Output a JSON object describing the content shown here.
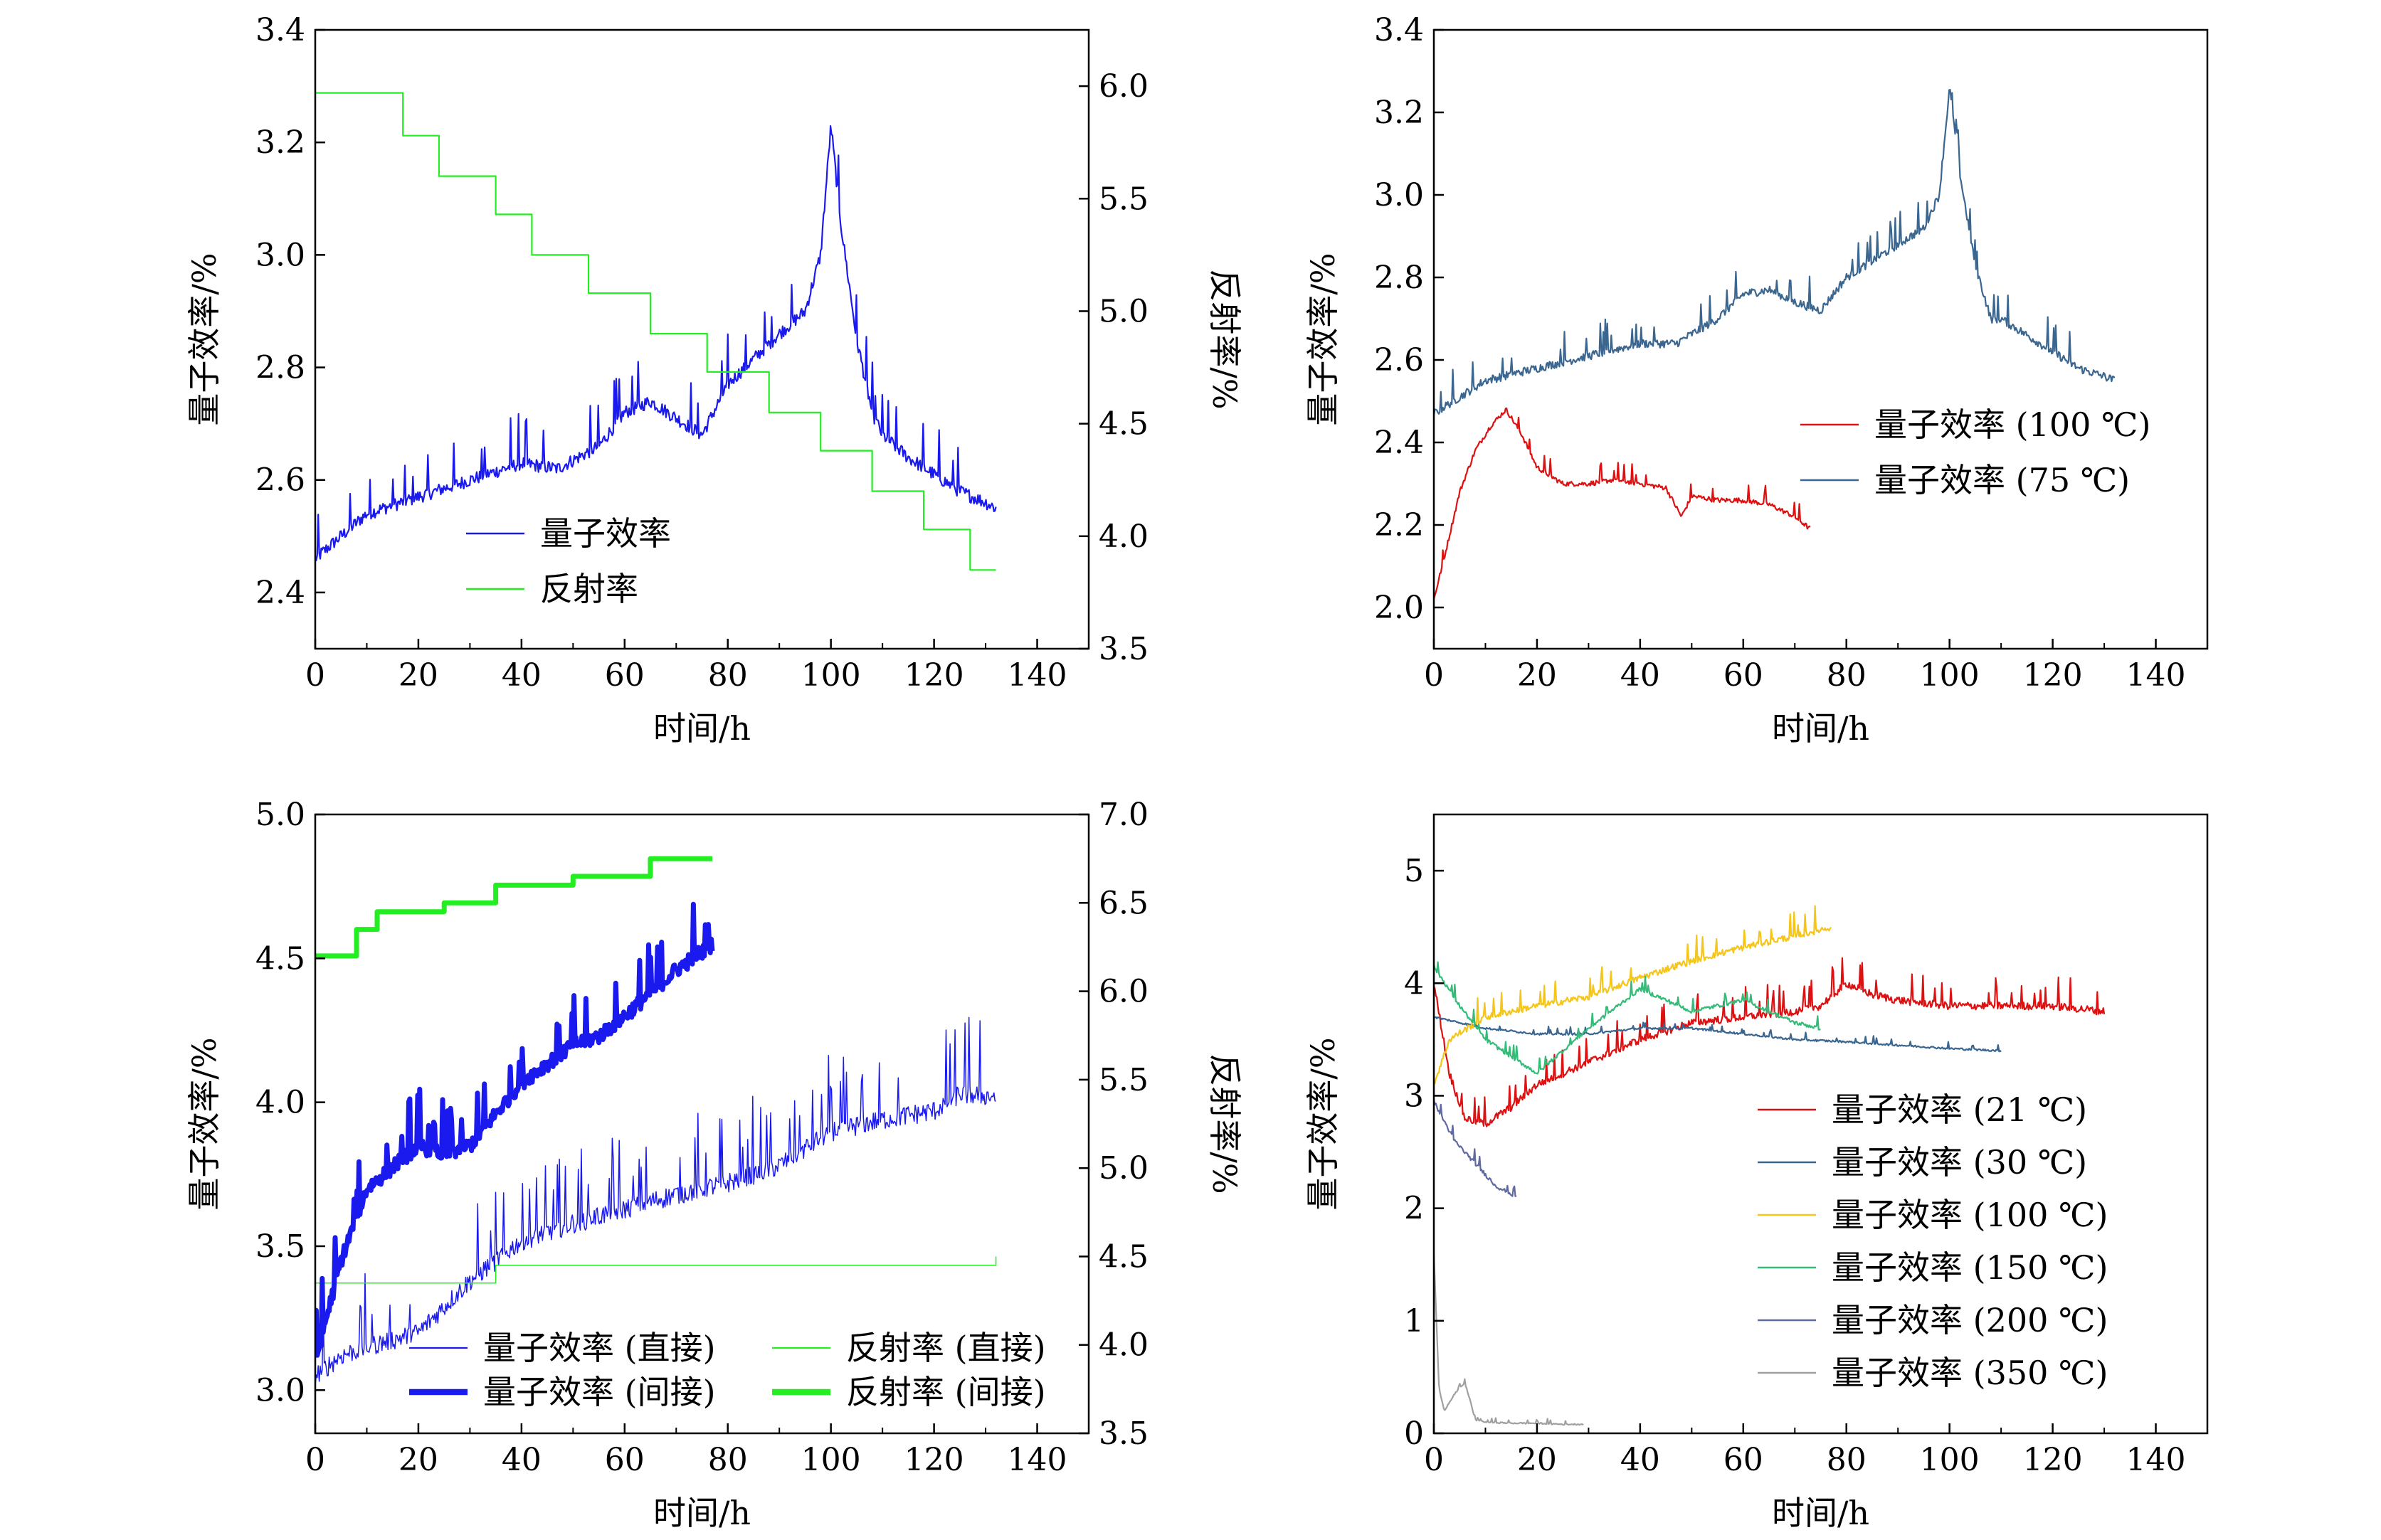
{
  "figure": {
    "panel_count": 4
  },
  "colors": {
    "blue": "#1a1aee",
    "green": "#22ee22",
    "red": "#dd1111",
    "steel": "#3a6690",
    "yellow": "#f5c518",
    "teal": "#33bb77",
    "slate": "#606aa2",
    "gray": "#a0a0a0"
  },
  "chart_data": [
    {
      "type": "line",
      "panel": "a",
      "xlabel": "时间/h",
      "ylabel": "量子效率/%",
      "y2label": "反射率/%",
      "xlim": [
        0,
        150
      ],
      "ylim": [
        2.3,
        3.4
      ],
      "y2lim": [
        3.5,
        6.25
      ],
      "xticks": [
        "0",
        "20",
        "40",
        "60",
        "80",
        "100",
        "120",
        "140"
      ],
      "yticks": [
        "2.4",
        "2.6",
        "2.8",
        "3.0",
        "3.2",
        "3.4"
      ],
      "y2ticks": [
        "3.5",
        "4.0",
        "4.5",
        "5.0",
        "5.5",
        "6.0"
      ],
      "series": [
        {
          "name": "量子效率",
          "axis": "left",
          "color": "blue",
          "x": [
            0,
            5,
            10,
            20,
            30,
            40,
            47,
            55,
            60,
            65,
            70,
            75,
            80,
            90,
            95,
            98,
            100,
            102,
            105,
            108,
            110,
            115,
            120,
            125,
            130,
            132
          ],
          "y": [
            2.46,
            2.5,
            2.54,
            2.57,
            2.6,
            2.63,
            2.62,
            2.66,
            2.72,
            2.74,
            2.71,
            2.68,
            2.77,
            2.86,
            2.9,
            3.0,
            3.23,
            3.05,
            2.85,
            2.72,
            2.68,
            2.64,
            2.61,
            2.58,
            2.56,
            2.55
          ],
          "noise": 0.04
        },
        {
          "name": "反射率",
          "axis": "right",
          "color": "green",
          "step": true,
          "x": [
            0,
            17,
            24,
            35,
            42,
            53,
            65,
            76,
            88,
            98,
            108,
            118,
            127,
            132
          ],
          "y": [
            5.97,
            5.78,
            5.6,
            5.43,
            5.25,
            5.08,
            4.9,
            4.73,
            4.55,
            4.38,
            4.2,
            4.03,
            3.85,
            3.85
          ]
        }
      ],
      "legend": {
        "position": "center-left",
        "entries": [
          "量子效率",
          "反射率"
        ]
      }
    },
    {
      "type": "line",
      "panel": "b",
      "xlabel": "时间/h",
      "ylabel": "量子效率/%",
      "xlim": [
        0,
        150
      ],
      "ylim": [
        1.9,
        3.4
      ],
      "xticks": [
        "0",
        "20",
        "40",
        "60",
        "80",
        "100",
        "120",
        "140"
      ],
      "yticks": [
        "2.0",
        "2.2",
        "2.4",
        "2.6",
        "2.8",
        "3.0",
        "3.2",
        "3.4"
      ],
      "series": [
        {
          "name": "量子效率 (100 ℃)",
          "color": "red",
          "x": [
            0,
            2,
            5,
            8,
            11,
            14,
            17,
            20,
            25,
            30,
            35,
            40,
            45,
            48,
            50,
            55,
            60,
            65,
            70,
            73
          ],
          "y": [
            2.02,
            2.12,
            2.28,
            2.38,
            2.44,
            2.48,
            2.42,
            2.34,
            2.3,
            2.3,
            2.31,
            2.3,
            2.29,
            2.22,
            2.27,
            2.26,
            2.26,
            2.25,
            2.22,
            2.19
          ],
          "noise": 0.02
        },
        {
          "name": "量子效率 (75 ℃)",
          "color": "steel",
          "x": [
            0,
            5,
            10,
            20,
            30,
            40,
            47,
            55,
            60,
            65,
            70,
            75,
            80,
            90,
            95,
            98,
            100,
            102,
            105,
            108,
            110,
            115,
            120,
            125,
            130,
            132
          ],
          "y": [
            2.47,
            2.51,
            2.55,
            2.58,
            2.61,
            2.64,
            2.64,
            2.7,
            2.76,
            2.77,
            2.74,
            2.72,
            2.8,
            2.88,
            2.92,
            3.0,
            3.26,
            3.05,
            2.83,
            2.7,
            2.7,
            2.66,
            2.62,
            2.58,
            2.56,
            2.55
          ],
          "noise": 0.035
        }
      ],
      "legend": {
        "position": "right",
        "entries": [
          "量子效率 (100 ℃)",
          "量子效率 (75 ℃)"
        ]
      }
    },
    {
      "type": "line",
      "panel": "c",
      "xlabel": "时间/h",
      "ylabel": "量子效率/%",
      "y2label": "反射率/%",
      "xlim": [
        0,
        150
      ],
      "ylim": [
        2.85,
        5.0
      ],
      "y2lim": [
        3.5,
        7.0
      ],
      "xticks": [
        "0",
        "20",
        "40",
        "60",
        "80",
        "100",
        "120",
        "140"
      ],
      "yticks": [
        "3.0",
        "3.5",
        "4.0",
        "4.5",
        "5.0"
      ],
      "y2ticks": [
        "3.5",
        "4.0",
        "4.5",
        "5.0",
        "5.5",
        "6.0",
        "6.5",
        "7.0"
      ],
      "series": [
        {
          "name": "量子效率 (直接)",
          "axis": "left",
          "color": "blue",
          "width": 1.5,
          "x": [
            0,
            5,
            10,
            20,
            30,
            40,
            50,
            60,
            70,
            80,
            90,
            100,
            110,
            120,
            125,
            132
          ],
          "y": [
            3.05,
            3.12,
            3.15,
            3.2,
            3.38,
            3.52,
            3.58,
            3.63,
            3.68,
            3.72,
            3.78,
            3.9,
            3.94,
            3.97,
            4.03,
            4.02
          ],
          "noise": 0.12
        },
        {
          "name": "反射率 (直接)",
          "axis": "right",
          "color": "green",
          "width": 1.5,
          "step": true,
          "x": [
            0,
            25,
            35,
            120,
            132
          ],
          "y": [
            4.35,
            4.35,
            4.45,
            4.45,
            4.5
          ]
        },
        {
          "name": "量子效率 (间接)",
          "axis": "left",
          "color": "blue",
          "width": 7,
          "x": [
            0,
            5,
            10,
            20,
            25,
            30,
            40,
            50,
            55,
            60,
            70,
            77
          ],
          "y": [
            3.1,
            3.45,
            3.7,
            3.85,
            3.82,
            3.85,
            4.07,
            4.2,
            4.23,
            4.3,
            4.46,
            4.55
          ],
          "noise": 0.09
        },
        {
          "name": "反射率 (间接)",
          "axis": "right",
          "color": "green",
          "width": 7,
          "step": true,
          "x": [
            0,
            8,
            12,
            25,
            35,
            50,
            65,
            77
          ],
          "y": [
            6.2,
            6.35,
            6.45,
            6.5,
            6.6,
            6.65,
            6.75,
            6.75
          ]
        }
      ],
      "legend": {
        "position": "bottom",
        "entries": [
          "量子效率 (直接)",
          "量子效率 (间接)",
          "反射率 (直接)",
          "反射率 (间接)"
        ]
      }
    },
    {
      "type": "line",
      "panel": "d",
      "xlabel": "时间/h",
      "ylabel": "量子效率/%",
      "xlim": [
        0,
        150
      ],
      "ylim": [
        0,
        5.5
      ],
      "xticks": [
        "0",
        "20",
        "40",
        "60",
        "80",
        "100",
        "120",
        "140"
      ],
      "yticks": [
        "0",
        "1",
        "2",
        "3",
        "4",
        "5"
      ],
      "series": [
        {
          "name": "量子效率 (21 ℃)",
          "color": "red",
          "x": [
            0,
            3,
            6,
            10,
            15,
            20,
            30,
            40,
            50,
            60,
            70,
            75,
            80,
            85,
            90,
            100,
            110,
            120,
            130
          ],
          "y": [
            4.0,
            3.2,
            2.8,
            2.75,
            2.9,
            3.1,
            3.3,
            3.5,
            3.65,
            3.7,
            3.75,
            3.8,
            4.0,
            3.9,
            3.85,
            3.8,
            3.8,
            3.8,
            3.75
          ],
          "noise": 0.12
        },
        {
          "name": "量子效率 (30 ℃)",
          "color": "steel",
          "x": [
            0,
            10,
            20,
            30,
            40,
            50,
            60,
            70,
            80,
            90,
            100,
            110
          ],
          "y": [
            3.7,
            3.6,
            3.55,
            3.55,
            3.6,
            3.6,
            3.55,
            3.5,
            3.48,
            3.45,
            3.42,
            3.4
          ],
          "noise": 0.03
        },
        {
          "name": "量子效率 (100 ℃)",
          "color": "yellow",
          "x": [
            0,
            3,
            10,
            20,
            30,
            40,
            50,
            60,
            70,
            77
          ],
          "y": [
            3.1,
            3.5,
            3.7,
            3.8,
            3.88,
            4.05,
            4.2,
            4.32,
            4.42,
            4.5
          ],
          "noise": 0.1
        },
        {
          "name": "量子效率 (150 ℃)",
          "color": "teal",
          "x": [
            0,
            5,
            10,
            20,
            30,
            40,
            50,
            60,
            70,
            75
          ],
          "y": [
            4.15,
            3.8,
            3.5,
            3.2,
            3.6,
            3.95,
            3.75,
            3.85,
            3.65,
            3.6
          ],
          "noise": 0.06
        },
        {
          "name": "量子效率 (200 ℃)",
          "color": "slate",
          "x": [
            0,
            4,
            8,
            12,
            16
          ],
          "y": [
            2.95,
            2.6,
            2.4,
            2.2,
            2.1
          ],
          "noise": 0.06
        },
        {
          "name": "量子效率 (350 ℃)",
          "color": "gray",
          "x": [
            0,
            1,
            2,
            4,
            6,
            7,
            8,
            10,
            15,
            20,
            25,
            29
          ],
          "y": [
            1.6,
            0.4,
            0.2,
            0.35,
            0.45,
            0.3,
            0.12,
            0.1,
            0.09,
            0.09,
            0.08,
            0.08
          ],
          "noise": 0.02
        }
      ],
      "legend": {
        "position": "right",
        "entries": [
          "量子效率 (21 ℃)",
          "量子效率 (30 ℃)",
          "量子效率 (100 ℃)",
          "量子效率 (150 ℃)",
          "量子效率 (200 ℃)",
          "量子效率 (350 ℃)"
        ]
      }
    }
  ]
}
